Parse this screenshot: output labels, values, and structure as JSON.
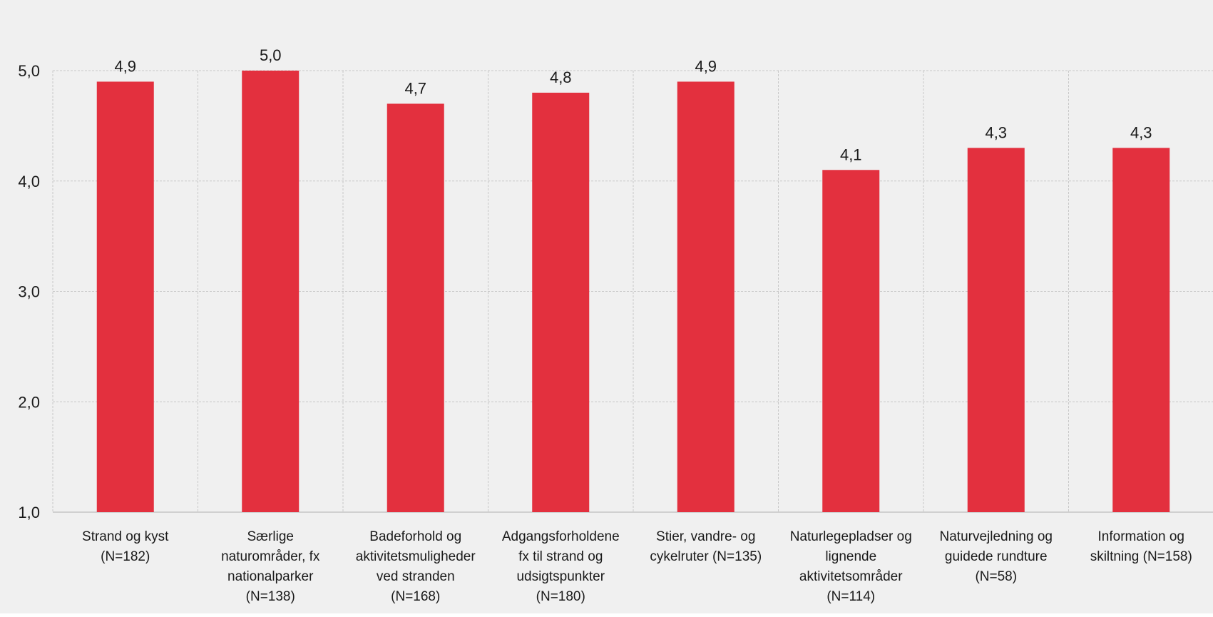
{
  "chart_data": {
    "type": "bar",
    "categories": [
      [
        "Strand og kyst",
        "(N=182)"
      ],
      [
        "Særlige",
        "naturområder, fx",
        "nationalparker",
        "(N=138)"
      ],
      [
        "Badeforhold og",
        "aktivitetsmuligheder",
        "ved stranden",
        "(N=168)"
      ],
      [
        "Adgangsforholdene",
        "fx til strand og",
        "udsigtspunkter",
        "(N=180)"
      ],
      [
        "Stier, vandre- og",
        "cykelruter (N=135)"
      ],
      [
        "Naturlegepladser og",
        "lignende",
        "aktivitetsområder",
        "(N=114)"
      ],
      [
        "Naturvejledning og",
        "guidede rundture",
        "(N=58)"
      ],
      [
        "Information og",
        "skiltning (N=158)"
      ]
    ],
    "values": [
      4.9,
      5.0,
      4.7,
      4.8,
      4.9,
      4.1,
      4.3,
      4.3
    ],
    "value_labels": [
      "4,9",
      "5,0",
      "4,7",
      "4,8",
      "4,9",
      "4,1",
      "4,3",
      "4,3"
    ],
    "yticks": [
      1.0,
      2.0,
      3.0,
      4.0,
      5.0
    ],
    "ytick_labels": [
      "1,0",
      "2,0",
      "3,0",
      "4,0",
      "5,0"
    ],
    "ylim": [
      1.0,
      5.0
    ],
    "grid": true,
    "title": "",
    "xlabel": "",
    "ylabel": "",
    "bar_color": "#e3303e",
    "background_color": "#f0f0f0",
    "grid_color": "#c8c8c8"
  }
}
